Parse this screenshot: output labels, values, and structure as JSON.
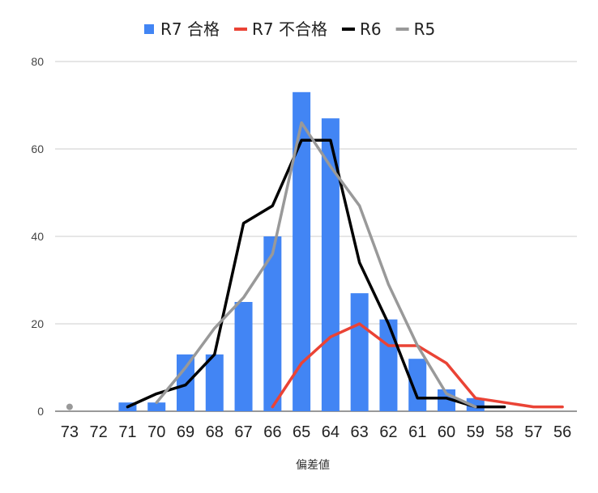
{
  "chart_data": {
    "type": "bar",
    "title": "",
    "xlabel": "偏差値",
    "ylabel": "",
    "categories": [
      "73",
      "72",
      "71",
      "70",
      "69",
      "68",
      "67",
      "66",
      "65",
      "64",
      "63",
      "62",
      "61",
      "60",
      "59",
      "58",
      "57",
      "56"
    ],
    "ylim": [
      0,
      80
    ],
    "yticks": [
      0,
      20,
      40,
      60,
      80
    ],
    "grid": true,
    "legend_position": "top",
    "series": [
      {
        "name": "R7 合格",
        "type": "bar",
        "color": "#4285f4",
        "values": [
          null,
          null,
          2,
          2,
          13,
          13,
          25,
          40,
          73,
          67,
          27,
          21,
          12,
          5,
          3,
          null,
          null,
          null
        ]
      },
      {
        "name": "R7 不合格",
        "type": "line",
        "color": "#ea4335",
        "values": [
          null,
          null,
          null,
          null,
          null,
          null,
          null,
          1,
          11,
          17,
          20,
          15,
          15,
          11,
          3,
          2,
          1,
          1
        ]
      },
      {
        "name": "R6",
        "type": "line",
        "color": "#000000",
        "values": [
          null,
          null,
          1,
          4,
          6,
          13,
          43,
          47,
          62,
          62,
          34,
          20,
          3,
          3,
          1,
          1,
          null,
          null
        ]
      },
      {
        "name": "R5",
        "type": "line",
        "color": "#999999",
        "values": [
          1,
          null,
          null,
          2,
          10,
          19,
          26,
          36,
          66,
          56,
          47,
          29,
          15,
          4,
          1,
          null,
          null,
          null
        ]
      }
    ]
  }
}
